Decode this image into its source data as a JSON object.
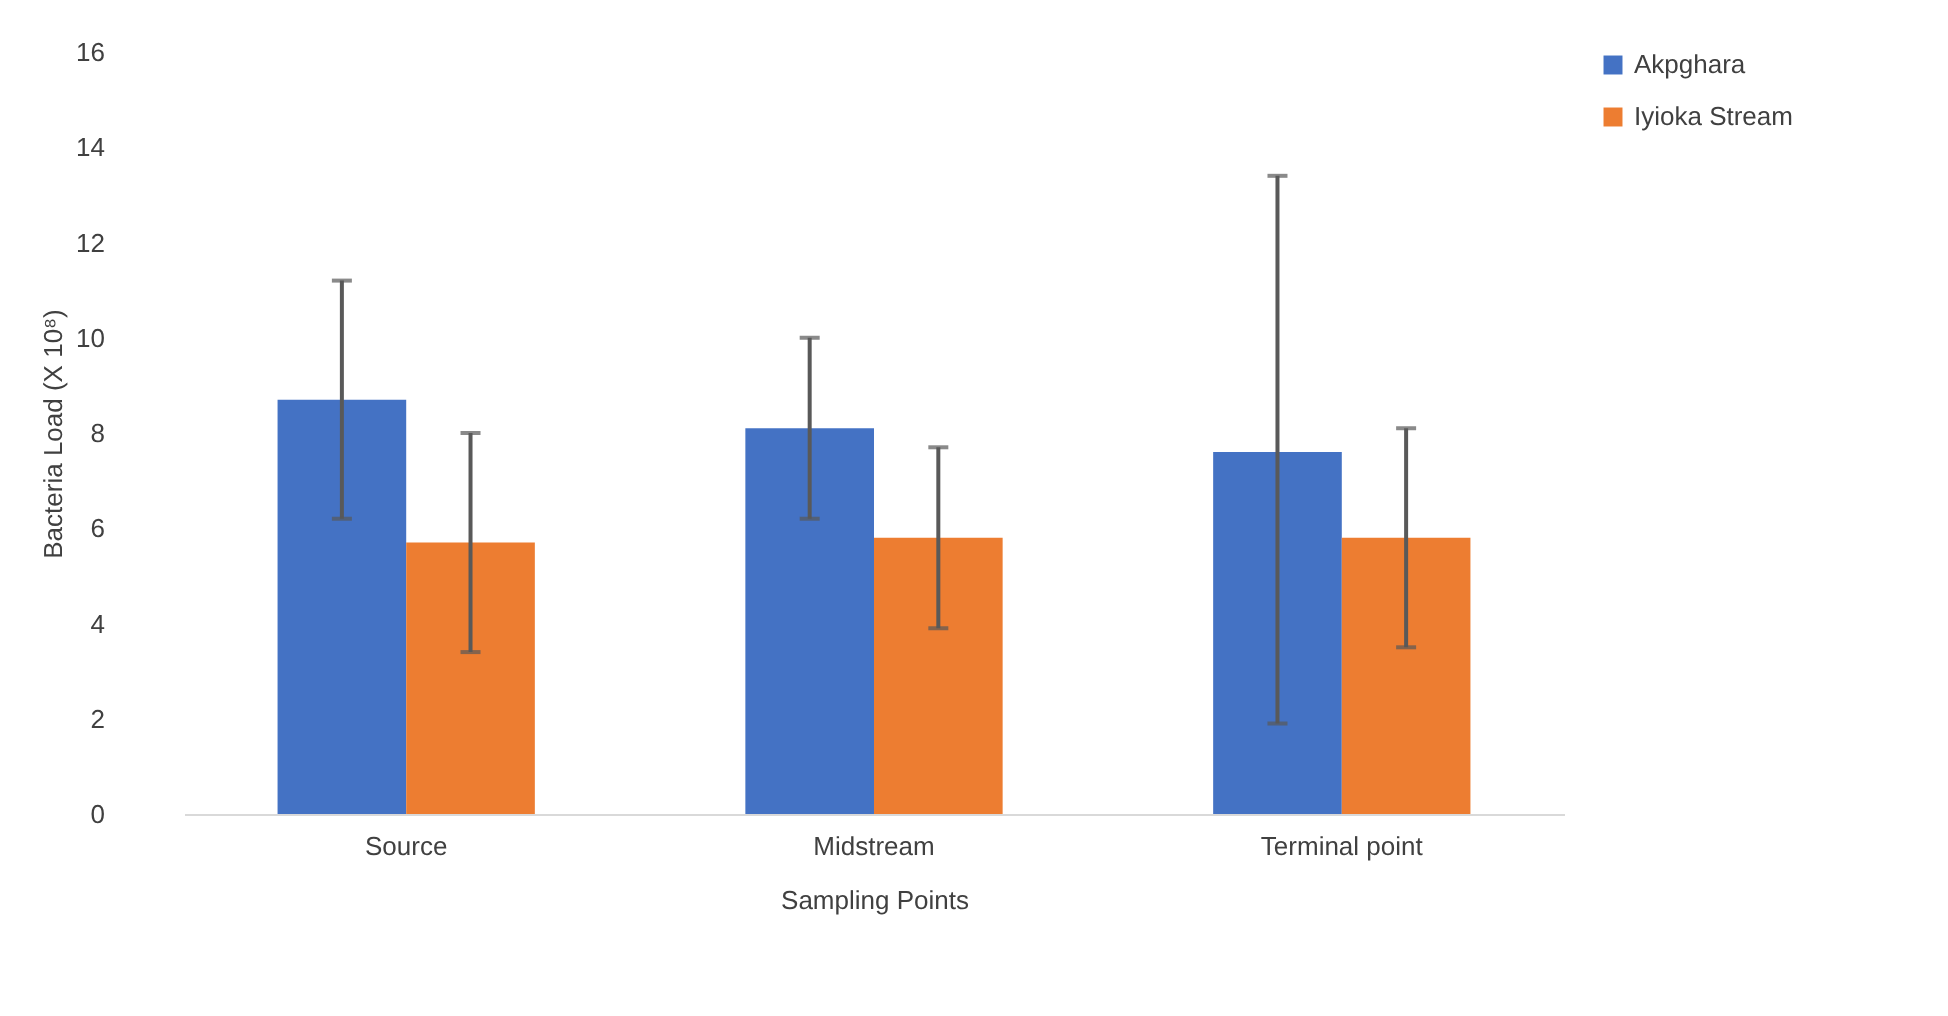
{
  "chart_data": {
    "type": "bar",
    "xlabel": "Sampling Points",
    "ylabel": "Bacteria Load (X 10⁸)",
    "categories": [
      "Source",
      "Midstream",
      "Terminal point"
    ],
    "series": [
      {
        "name": "Akpghara",
        "color": "#4472c4",
        "values": [
          8.7,
          8.1,
          7.6
        ],
        "errors": [
          [
            6.2,
            11.2
          ],
          [
            6.2,
            10.0
          ],
          [
            1.9,
            13.4
          ]
        ]
      },
      {
        "name": "Iyioka Stream",
        "color": "#ed7d31",
        "values": [
          5.7,
          5.8,
          5.8
        ],
        "errors": [
          [
            3.4,
            8.0
          ],
          [
            3.9,
            7.7
          ],
          [
            3.5,
            8.1
          ]
        ]
      }
    ],
    "ylim": [
      0,
      16
    ],
    "yticks": [
      0,
      2,
      4,
      6,
      8,
      10,
      12,
      14,
      16
    ],
    "grid": false,
    "legend": "right"
  }
}
